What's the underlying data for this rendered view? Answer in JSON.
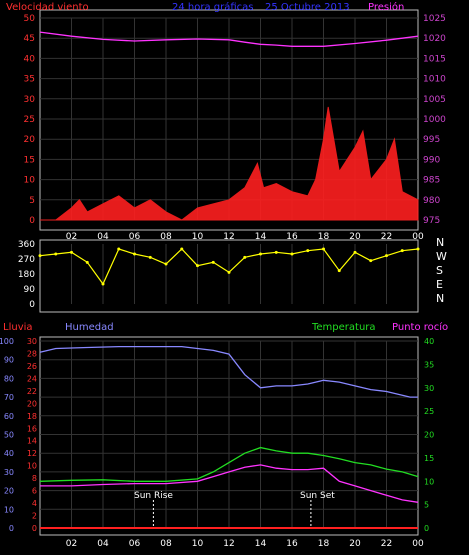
{
  "top": {
    "title_left": "Velocidad viento",
    "title_center": "24 hora gráficas",
    "title_date": "25 Octubre 2013",
    "title_right": "Presión",
    "left_ticks": [
      "0",
      "5",
      "10",
      "15",
      "20",
      "25",
      "30",
      "35",
      "40",
      "45",
      "50"
    ],
    "right_ticks": [
      "975",
      "980",
      "985",
      "990",
      "995",
      "1000",
      "1005",
      "1010",
      "1015",
      "1020",
      "1025"
    ]
  },
  "dir": {
    "ticks": [
      "0",
      "90",
      "180",
      "270",
      "360"
    ],
    "compass": [
      "N",
      "W",
      "S",
      "E",
      "N"
    ]
  },
  "bottom": {
    "title_lluvia": "Lluvia",
    "title_humedad": "Humedad",
    "title_temp": "Temperatura",
    "title_rocio": "Punto rocío",
    "hum_ticks": [
      "0",
      "10",
      "20",
      "30",
      "40",
      "50",
      "60",
      "70",
      "80",
      "90",
      "100"
    ],
    "rain_ticks": [
      "0",
      "2",
      "4",
      "6",
      "8",
      "10",
      "12",
      "14",
      "16",
      "18",
      "20",
      "22",
      "24",
      "26",
      "28",
      "30"
    ],
    "temp_ticks": [
      "0",
      "5",
      "10",
      "15",
      "20",
      "25",
      "30",
      "35",
      "40"
    ],
    "sunrise": "Sun Rise",
    "sunset": "Sun Set"
  },
  "x_ticks": [
    "02",
    "04",
    "06",
    "08",
    "10",
    "12",
    "14",
    "16",
    "18",
    "20",
    "22",
    "00"
  ],
  "colors": {
    "wind": "#ff2020",
    "gust": "#33cc33",
    "pressure": "#ff33ff",
    "humidity": "#8888ff",
    "temp": "#22dd22",
    "dew": "#ff33ff",
    "dir": "#ffff00",
    "rain": "#ff2020",
    "axisL": "#3333ff",
    "axisR": "#aa44aa"
  },
  "chart_data": [
    {
      "type": "line",
      "title": "24 hora gráficas 25 Octubre 2013",
      "x_range_hours": [
        0,
        24
      ],
      "series": [
        {
          "name": "Velocidad viento",
          "axis": "left",
          "ylim": [
            0,
            50
          ],
          "x": [
            0,
            1,
            2,
            2.5,
            3,
            4,
            5,
            6,
            7,
            8,
            9,
            10,
            11,
            12,
            13,
            13.8,
            14.2,
            15,
            16,
            17,
            17.5,
            18,
            18.3,
            19,
            20,
            20.5,
            21,
            22,
            22.5,
            23,
            24
          ],
          "values": [
            0,
            0,
            3,
            5,
            2,
            4,
            6,
            3,
            5,
            2,
            0,
            3,
            4,
            5,
            8,
            14,
            8,
            9,
            7,
            6,
            10,
            20,
            28,
            12,
            18,
            22,
            10,
            15,
            20,
            7,
            5
          ]
        },
        {
          "name": "Presión",
          "axis": "right",
          "ylim": [
            975,
            1025
          ],
          "x": [
            0,
            2,
            4,
            6,
            8,
            10,
            12,
            13,
            14,
            15,
            16,
            18,
            20,
            22,
            24
          ],
          "values": [
            1021.5,
            1020.5,
            1019.7,
            1019.3,
            1019.6,
            1019.8,
            1019.6,
            1019.0,
            1018.5,
            1018.3,
            1018.0,
            1018.0,
            1018.7,
            1019.5,
            1020.5
          ]
        }
      ]
    },
    {
      "type": "scatter",
      "title": "",
      "ylim": [
        0,
        360
      ],
      "series": [
        {
          "name": "",
          "x": [
            0,
            1,
            2,
            3,
            4,
            5,
            6,
            7,
            8,
            9,
            10,
            11,
            12,
            13,
            14,
            15,
            16,
            17,
            18,
            19,
            20,
            21,
            22,
            23,
            24
          ],
          "values": [
            290,
            300,
            310,
            250,
            120,
            330,
            300,
            280,
            240,
            330,
            230,
            250,
            190,
            280,
            300,
            310,
            300,
            320,
            330,
            200,
            310,
            260,
            290,
            320,
            330
          ]
        }
      ]
    },
    {
      "type": "line",
      "title": "",
      "x_range_hours": [
        0,
        24
      ],
      "series": [
        {
          "name": "Humedad",
          "axis": "left",
          "ylim": [
            0,
            100
          ],
          "x": [
            0,
            1,
            3,
            5,
            7,
            9,
            10,
            11,
            12,
            13,
            14,
            15,
            16,
            17,
            18,
            19,
            20,
            21,
            22,
            23,
            23.5,
            24
          ],
          "values": [
            94,
            96,
            96.5,
            97,
            97,
            97,
            96,
            95,
            93,
            82,
            75,
            76,
            76,
            77,
            79,
            78,
            76,
            74,
            73,
            71,
            70,
            70
          ]
        },
        {
          "name": "Temperatura",
          "axis": "right",
          "ylim": [
            0,
            40
          ],
          "x": [
            0,
            2,
            4,
            6,
            8,
            10,
            11,
            12,
            13,
            14,
            15,
            16,
            17,
            18,
            19,
            20,
            21,
            22,
            23,
            24
          ],
          "values": [
            10.0,
            10.2,
            10.3,
            10.0,
            10.0,
            10.5,
            12,
            14,
            16,
            17.2,
            16.5,
            16,
            16,
            15.5,
            14.8,
            14,
            13.5,
            12.6,
            12,
            11
          ]
        },
        {
          "name": "Punto rocío",
          "axis": "right",
          "ylim": [
            0,
            40
          ],
          "x": [
            0,
            2,
            4,
            6,
            8,
            10,
            11,
            12,
            13,
            14,
            15,
            16,
            17,
            18,
            19,
            20,
            21,
            22,
            23,
            24
          ],
          "values": [
            9.0,
            9.0,
            9.3,
            9.5,
            9.5,
            10,
            11,
            12,
            13,
            13.5,
            12.8,
            12.5,
            12.5,
            12.8,
            10,
            9,
            8,
            7,
            6,
            5.5
          ]
        },
        {
          "name": "Lluvia",
          "axis": "left2",
          "ylim": [
            0,
            30
          ],
          "x": [
            0,
            24
          ],
          "values": [
            0,
            0
          ]
        }
      ]
    }
  ]
}
